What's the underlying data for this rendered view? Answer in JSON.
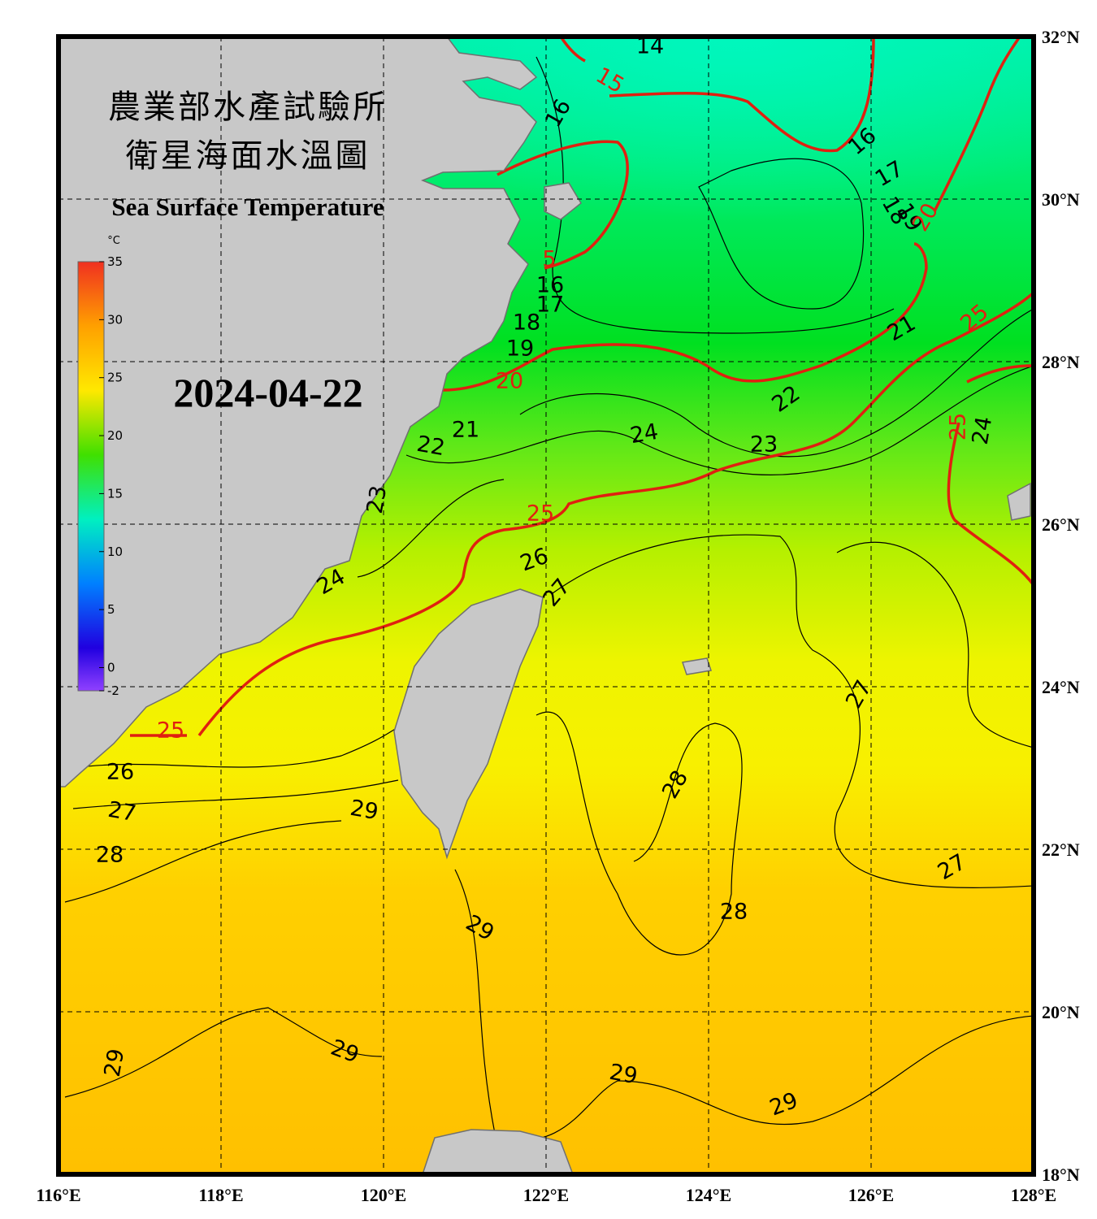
{
  "map": {
    "title_zh_1": "農業部水產試驗所",
    "title_zh_2": "衛星海面水溫圖",
    "title_en": "Sea Surface Temperature",
    "date": "2024-04-22",
    "colorbar": {
      "unit": "°C",
      "ticks": [
        35,
        30,
        25,
        20,
        15,
        10,
        5,
        0,
        -2
      ]
    },
    "lon_ticks": [
      {
        "value": 116,
        "label": "116°E"
      },
      {
        "value": 118,
        "label": "118°E"
      },
      {
        "value": 120,
        "label": "120°E"
      },
      {
        "value": 122,
        "label": "122°E"
      },
      {
        "value": 124,
        "label": "124°E"
      },
      {
        "value": 126,
        "label": "126°E"
      },
      {
        "value": 128,
        "label": "128°E"
      }
    ],
    "lat_ticks": [
      {
        "value": 32,
        "label": "32°N"
      },
      {
        "value": 30,
        "label": "30°N"
      },
      {
        "value": 28,
        "label": "28°N"
      },
      {
        "value": 26,
        "label": "26°N"
      },
      {
        "value": 24,
        "label": "24°N"
      },
      {
        "value": 22,
        "label": "22°N"
      },
      {
        "value": 20,
        "label": "20°N"
      },
      {
        "value": 18,
        "label": "18°N"
      }
    ],
    "contour_labels": [
      14,
      15,
      16,
      16,
      17,
      18,
      19,
      20,
      5,
      16,
      17,
      18,
      19,
      20,
      21,
      25,
      22,
      21,
      22,
      24,
      23,
      25,
      24,
      23,
      25,
      26,
      27,
      24,
      25,
      26,
      27,
      28,
      29,
      28,
      27,
      27,
      28,
      29,
      29,
      29,
      29,
      29
    ]
  }
}
